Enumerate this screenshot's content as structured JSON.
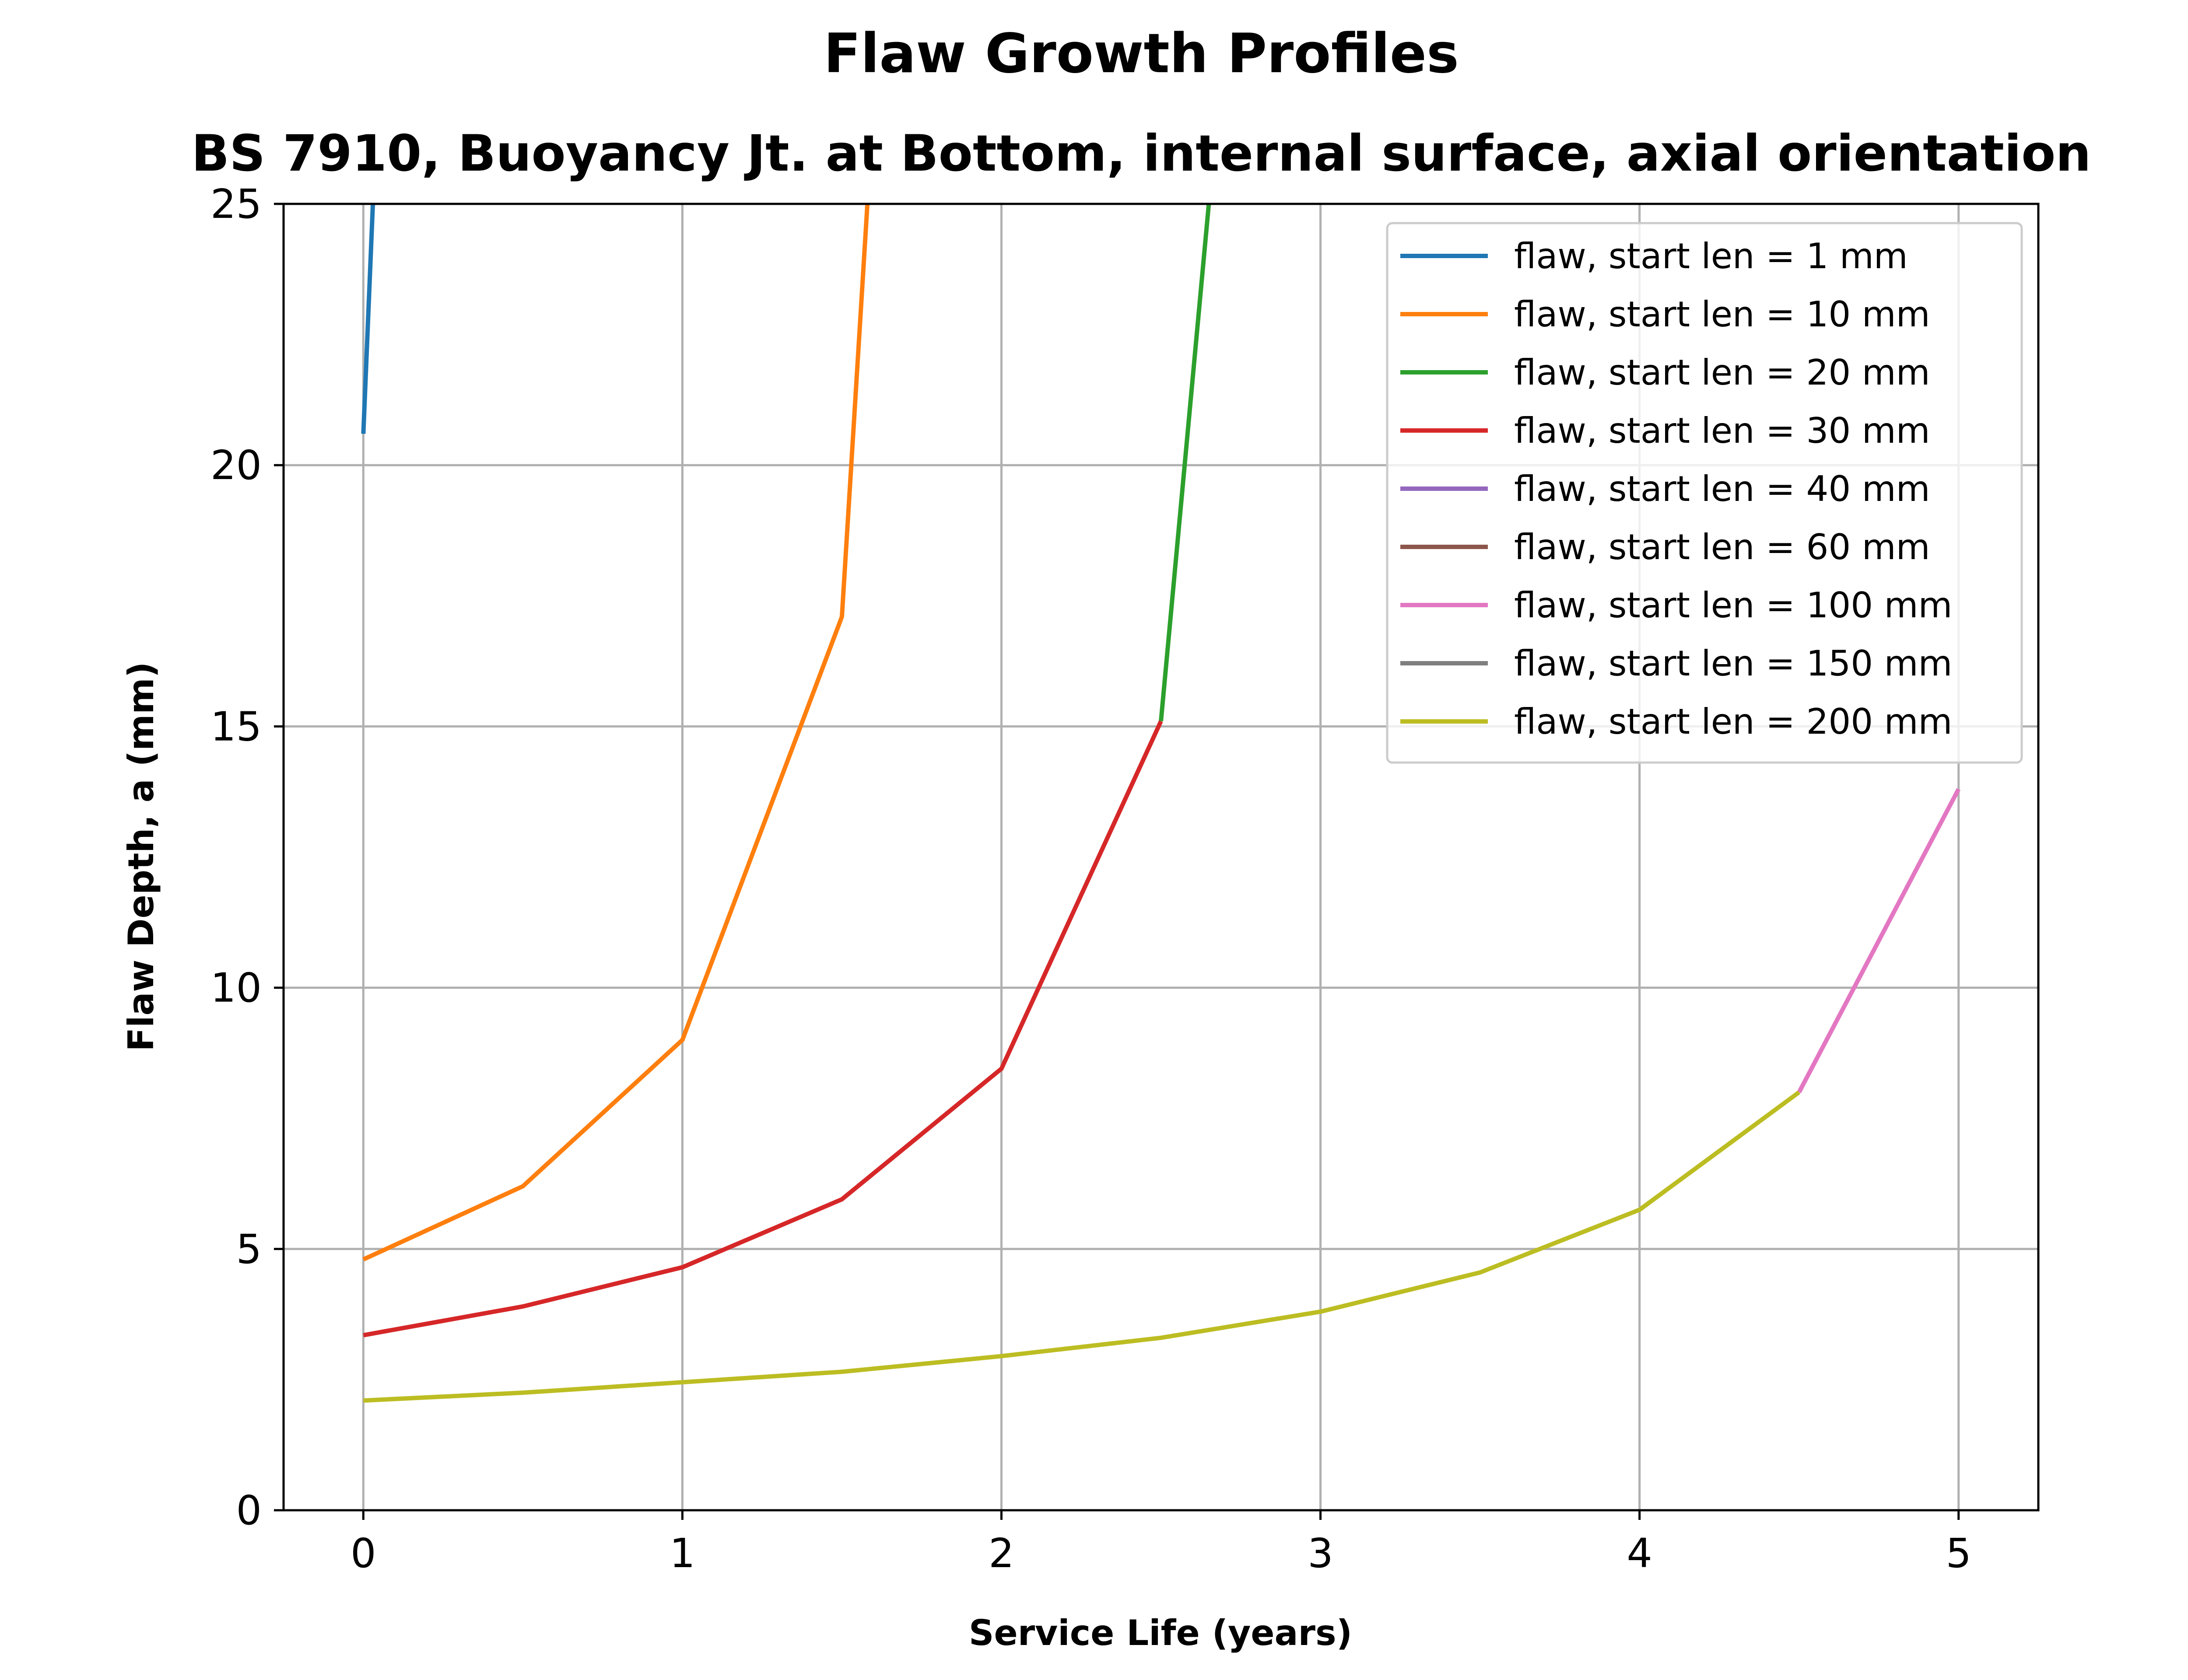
{
  "chart_data": {
    "type": "line",
    "title": "Flaw Growth Profiles",
    "subtitle": "BS 7910, Buoyancy Jt. at Bottom, internal surface, axial orientation",
    "xlabel": "Service Life (years)",
    "ylabel": "Flaw Depth, a (mm)",
    "xlim": [
      -0.25,
      5.25
    ],
    "ylim": [
      0,
      25
    ],
    "xticks": [
      "0",
      "1",
      "2",
      "3",
      "4",
      "5"
    ],
    "yticks": [
      "0",
      "5",
      "10",
      "15",
      "20",
      "25"
    ],
    "grid": true,
    "legend_position": "top-right",
    "series": [
      {
        "name": "flaw, start len = 1 mm",
        "color": "#1f77b4",
        "x": [
          0,
          0.03
        ],
        "y": [
          20.6,
          25
        ]
      },
      {
        "name": "flaw, start len = 10 mm",
        "color": "#ff7f0e",
        "x": [
          0,
          0.5,
          1.0,
          1.5,
          1.58
        ],
        "y": [
          4.8,
          6.2,
          9.0,
          17.1,
          25
        ]
      },
      {
        "name": "flaw, start len = 20 mm",
        "color": "#2ca02c",
        "x": [
          2.5,
          2.65
        ],
        "y": [
          15.1,
          25
        ]
      },
      {
        "name": "flaw, start len = 30 mm",
        "color": "#d62728",
        "x": [
          0,
          0.5,
          1.0,
          1.5,
          2.0,
          2.5
        ],
        "y": [
          3.35,
          3.9,
          4.65,
          5.95,
          8.45,
          15.1
        ]
      },
      {
        "name": "flaw, start len = 40 mm",
        "color": "#9467bd",
        "x": [],
        "y": []
      },
      {
        "name": "flaw, start len = 60 mm",
        "color": "#8c564b",
        "x": [],
        "y": []
      },
      {
        "name": "flaw, start len = 100 mm",
        "color": "#e377c2",
        "x": [
          4.5,
          5.0
        ],
        "y": [
          8.0,
          13.8
        ]
      },
      {
        "name": "flaw, start len = 150 mm",
        "color": "#7f7f7f",
        "x": [],
        "y": []
      },
      {
        "name": "flaw, start len = 200 mm",
        "color": "#bcbd22",
        "x": [
          0,
          0.5,
          1.0,
          1.5,
          2.0,
          2.5,
          3.0,
          3.5,
          4.0,
          4.5
        ],
        "y": [
          2.1,
          2.25,
          2.45,
          2.65,
          2.95,
          3.3,
          3.8,
          4.55,
          5.75,
          8.0
        ]
      }
    ]
  }
}
